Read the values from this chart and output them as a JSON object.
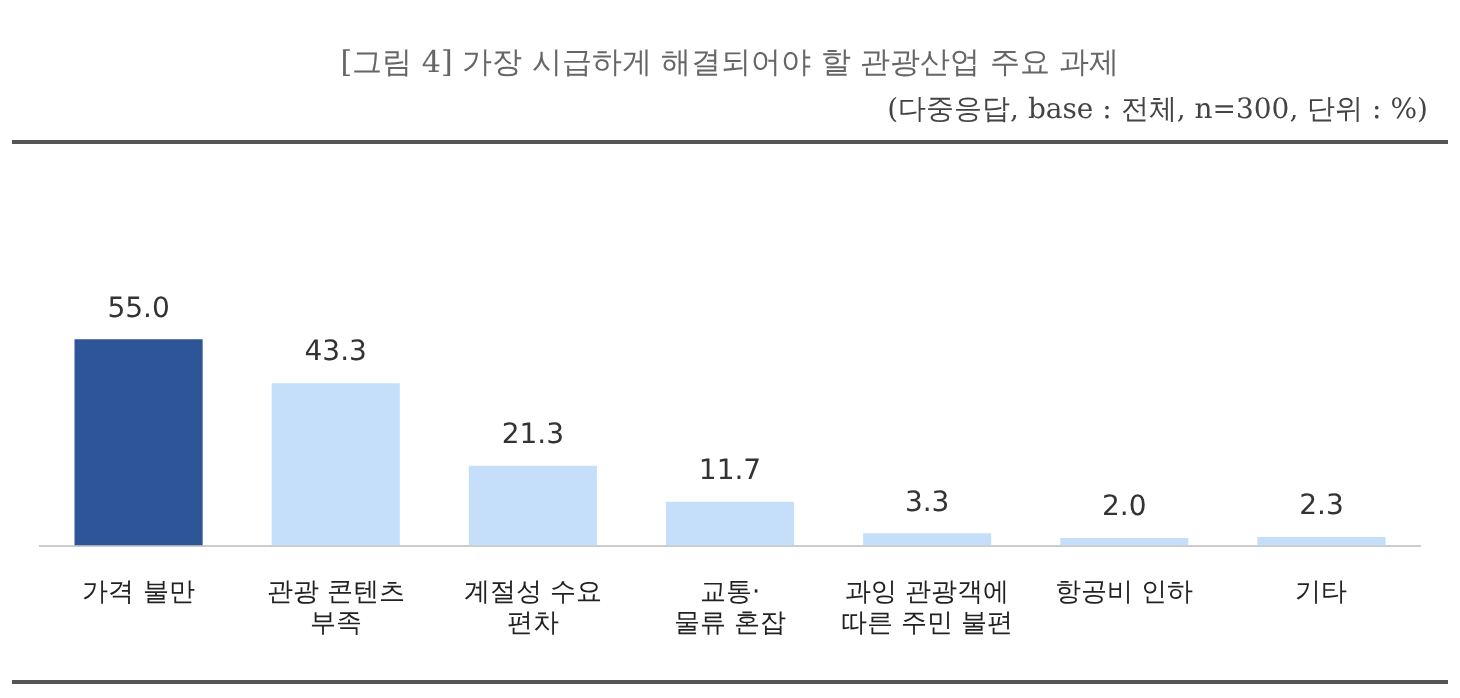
{
  "chart_data": {
    "type": "bar",
    "title": "[그림 4] 가장 시급하게 해결되어야 할 관광산업 주요 과제",
    "subtitle": "(다중응답, base : 전체, n=300, 단위 : %)",
    "categories": [
      "가격 불만",
      "관광 콘텐츠\n부족",
      "계절성 수요\n편차",
      "교통·\n물류 혼잡",
      "과잉 관광객에\n따른 주민 불편",
      "항공비 인하",
      "기타"
    ],
    "values": [
      55.0,
      43.3,
      21.3,
      11.7,
      3.3,
      2.0,
      2.3
    ],
    "colors": [
      "#2e5597",
      "#c5dffa",
      "#c5dffa",
      "#c5dffa",
      "#c5dffa",
      "#c5dffa",
      "#c5dffa"
    ],
    "value_labels": [
      "55.0",
      "43.3",
      "21.3",
      "11.7",
      "3.3",
      "2.0",
      "2.3"
    ],
    "grid": false,
    "legend": false
  }
}
